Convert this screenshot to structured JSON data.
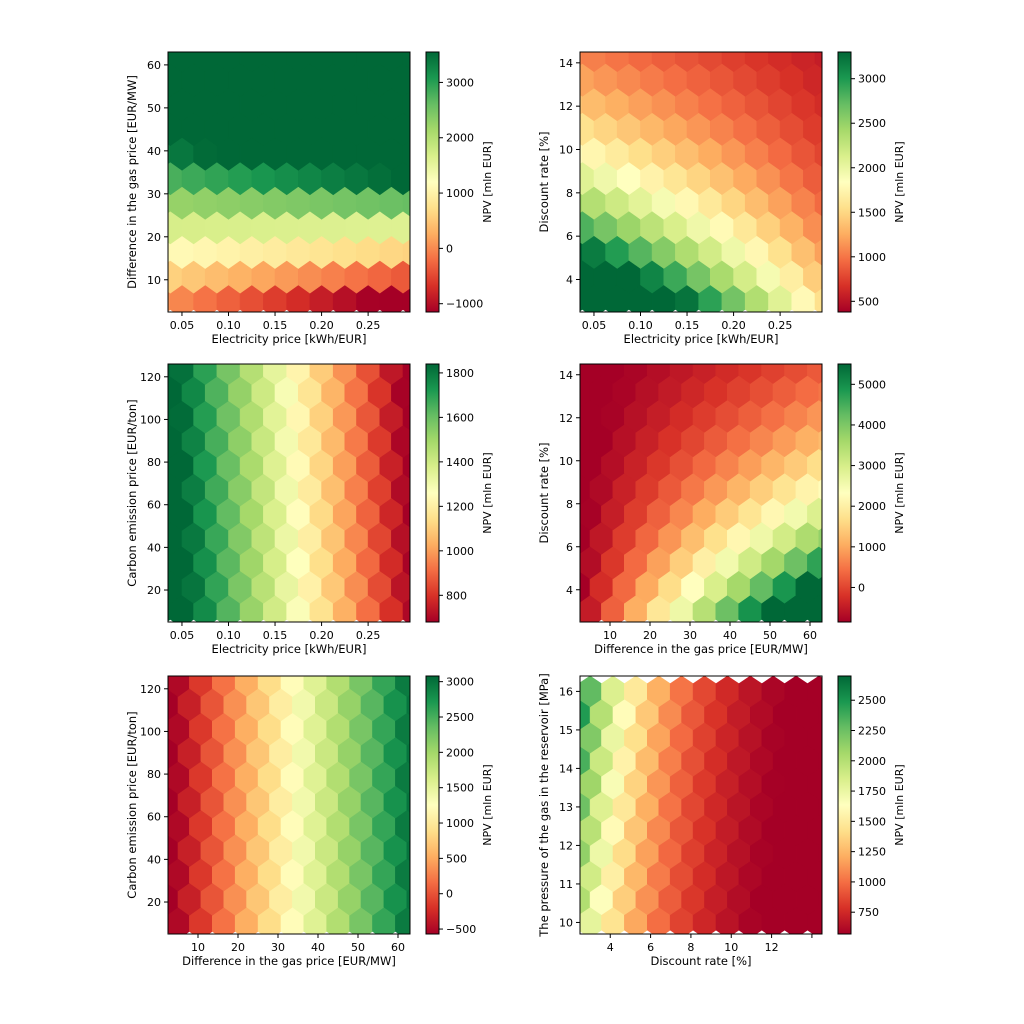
{
  "colormap": [
    "#a50026",
    "#d73027",
    "#f46d43",
    "#fdae61",
    "#fee08b",
    "#ffffbf",
    "#d9ef8b",
    "#a6d96a",
    "#66bd63",
    "#1a9850",
    "#006837"
  ],
  "chart_data": [
    {
      "type": "heatmap",
      "subtype": "hexbin",
      "xlabel": "Electricity price [kWh/EUR]",
      "ylabel": "Difference in the gas price [EUR/MW]",
      "colorbar_label": "NPV [mln EUR]",
      "xlim": [
        0.035,
        0.295
      ],
      "ylim": [
        2.5,
        63
      ],
      "x_ticks": [
        0.05,
        0.1,
        0.15,
        0.2,
        0.25
      ],
      "x_tick_labels": [
        "0.05",
        "0.10",
        "0.15",
        "0.20",
        "0.25"
      ],
      "y_ticks": [
        10,
        20,
        30,
        40,
        50,
        60
      ],
      "y_tick_labels": [
        "10",
        "20",
        "30",
        "40",
        "50",
        "60"
      ],
      "colorbar_range": [
        -1150,
        3550
      ],
      "colorbar_ticks": [
        -1000,
        0,
        1000,
        2000,
        3000
      ],
      "colorbar_tick_labels": [
        "−1000",
        "0",
        "1000",
        "2000",
        "3000"
      ],
      "x0": 0.05,
      "y0": 5,
      "dx": 0.025,
      "dy": 5.72,
      "nx": 10,
      "ny": 11,
      "model": {
        "type": "bilinear",
        "a": -180,
        "bx": -7000,
        "by": 85,
        "bxy": 300
      }
    },
    {
      "type": "heatmap",
      "subtype": "hexbin",
      "xlabel": "Electricity price [kWh/EUR]",
      "ylabel": "Discount rate [%]",
      "colorbar_label": "NPV [mln EUR]",
      "xlim": [
        0.035,
        0.295
      ],
      "ylim": [
        2.5,
        14.5
      ],
      "x_ticks": [
        0.05,
        0.1,
        0.15,
        0.2,
        0.25
      ],
      "x_tick_labels": [
        "0.05",
        "0.10",
        "0.15",
        "0.20",
        "0.25"
      ],
      "y_ticks": [
        4,
        6,
        8,
        10,
        12,
        14
      ],
      "y_tick_labels": [
        "4",
        "6",
        "8",
        "10",
        "12",
        "14"
      ],
      "colorbar_range": [
        380,
        3300
      ],
      "colorbar_ticks": [
        500,
        1000,
        1500,
        2000,
        2500,
        3000
      ],
      "colorbar_tick_labels": [
        "500",
        "1000",
        "1500",
        "2000",
        "2500",
        "3000"
      ],
      "x0": 0.05,
      "y0": 3,
      "dx": 0.025,
      "dy": 1.135,
      "nx": 10,
      "ny": 11,
      "model": {
        "type": "exp",
        "A": 4700,
        "B": 0.013,
        "k": 0.155,
        "ref": 2,
        "c": 350
      }
    },
    {
      "type": "heatmap",
      "subtype": "hexbin",
      "xlabel": "Electricity price [kWh/EUR]",
      "ylabel": "Carbon emission price [EUR/ton]",
      "colorbar_label": "NPV [mln EUR]",
      "xlim": [
        0.035,
        0.295
      ],
      "ylim": [
        5,
        126
      ],
      "x_ticks": [
        0.05,
        0.1,
        0.15,
        0.2,
        0.25
      ],
      "x_tick_labels": [
        "0.05",
        "0.10",
        "0.15",
        "0.20",
        "0.25"
      ],
      "y_ticks": [
        20,
        40,
        60,
        80,
        100,
        120
      ],
      "y_tick_labels": [
        "20",
        "40",
        "60",
        "80",
        "100",
        "120"
      ],
      "colorbar_range": [
        680,
        1840
      ],
      "colorbar_ticks": [
        800,
        1000,
        1200,
        1400,
        1600,
        1800
      ],
      "colorbar_tick_labels": [
        "800",
        "1000",
        "1200",
        "1400",
        "1600",
        "1800"
      ],
      "x0": 0.05,
      "y0": 10,
      "dx": 0.025,
      "dy": 11.4,
      "nx": 10,
      "ny": 11,
      "model": {
        "type": "linear",
        "a": 2120,
        "bx": -4800,
        "by": -0.5
      }
    },
    {
      "type": "heatmap",
      "subtype": "hexbin",
      "xlabel": "Difference in the gas price [EUR/MW]",
      "ylabel": "Discount rate [%]",
      "colorbar_label": "NPV [mln EUR]",
      "xlim": [
        2.5,
        63
      ],
      "ylim": [
        2.5,
        14.5
      ],
      "x_ticks": [
        10,
        20,
        30,
        40,
        50,
        60
      ],
      "x_tick_labels": [
        "10",
        "20",
        "30",
        "40",
        "50",
        "60"
      ],
      "y_ticks": [
        4,
        6,
        8,
        10,
        12,
        14
      ],
      "y_tick_labels": [
        "4",
        "6",
        "8",
        "10",
        "12",
        "14"
      ],
      "colorbar_range": [
        -850,
        5500
      ],
      "colorbar_ticks": [
        0,
        1000,
        2000,
        3000,
        4000,
        5000
      ],
      "colorbar_tick_labels": [
        "0",
        "1000",
        "2000",
        "3000",
        "4000",
        "5000"
      ],
      "x0": 5,
      "y0": 3,
      "dx": 5.72,
      "dy": 1.135,
      "nx": 10,
      "ny": 11,
      "model": {
        "type": "exp2",
        "a": -1150,
        "s": 135,
        "k": 0.16,
        "ref": 3
      }
    },
    {
      "type": "heatmap",
      "subtype": "hexbin",
      "xlabel": "Difference in the gas price [EUR/MW]",
      "ylabel": "Carbon emission price [EUR/ton]",
      "colorbar_label": "NPV [mln EUR]",
      "xlim": [
        2.5,
        63
      ],
      "ylim": [
        5,
        126
      ],
      "x_ticks": [
        10,
        20,
        30,
        40,
        50,
        60
      ],
      "x_tick_labels": [
        "10",
        "20",
        "30",
        "40",
        "50",
        "60"
      ],
      "y_ticks": [
        20,
        40,
        60,
        80,
        100,
        120
      ],
      "y_tick_labels": [
        "20",
        "40",
        "60",
        "80",
        "100",
        "120"
      ],
      "colorbar_range": [
        -570,
        3080
      ],
      "colorbar_ticks": [
        -500,
        0,
        500,
        1000,
        1500,
        2000,
        2500,
        3000
      ],
      "colorbar_tick_labels": [
        "−500",
        "0",
        "500",
        "1000",
        "1500",
        "2000",
        "2500",
        "3000"
      ],
      "x0": 5,
      "y0": 10,
      "dx": 5.72,
      "dy": 11.4,
      "nx": 10,
      "ny": 11,
      "model": {
        "type": "linear",
        "a": -800,
        "bx": 60,
        "by": 0
      }
    },
    {
      "type": "heatmap",
      "subtype": "hexbin",
      "xlabel": "Discount rate [%]",
      "ylabel": "The pressure of the gas in the reservoir [MPa]",
      "colorbar_label": "NPV [mln EUR]",
      "xlim": [
        2.5,
        14.5
      ],
      "ylim": [
        9.7,
        16.4
      ],
      "x_ticks": [
        4,
        6,
        8,
        10,
        12,
        14
      ],
      "x_tick_labels": [
        "4",
        "6",
        "8",
        "10",
        "12",
        ""
      ],
      "y_ticks": [
        10,
        11,
        12,
        13,
        14,
        15,
        16
      ],
      "y_tick_labels": [
        "10",
        "11",
        "12",
        "13",
        "14",
        "15",
        "16"
      ],
      "colorbar_range": [
        570,
        2700
      ],
      "colorbar_ticks": [
        750,
        1000,
        1250,
        1500,
        1750,
        2000,
        2250,
        2500
      ],
      "colorbar_tick_labels": [
        "750",
        "1000",
        "1250",
        "1500",
        "1750",
        "2000",
        "2250",
        "2500"
      ],
      "x0": 3,
      "y0": 10,
      "dx": 1.135,
      "dy": 0.6,
      "nx": 10,
      "ny": 11,
      "model": {
        "type": "exp3",
        "c": 380,
        "A": 1400,
        "k": 0.24,
        "ref": 3,
        "B": 0.06,
        "pref": 10
      }
    }
  ]
}
